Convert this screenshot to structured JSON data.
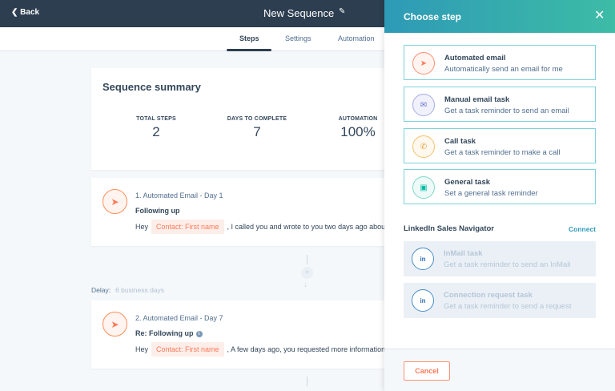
{
  "header": {
    "back_label": "Back",
    "title": "New Sequence",
    "edit_icon": "pencil-icon"
  },
  "tabs": [
    {
      "label": "Steps",
      "active": true
    },
    {
      "label": "Settings"
    },
    {
      "label": "Automation"
    }
  ],
  "summary": {
    "title": "Sequence summary",
    "stats": [
      {
        "label": "TOTAL STEPS",
        "value": "2"
      },
      {
        "label": "DAYS TO COMPLETE",
        "value": "7"
      },
      {
        "label": "AUTOMATION",
        "value": "100%"
      }
    ]
  },
  "steps": [
    {
      "heading": "1. Automated Email - Day 1",
      "subject": "Following up",
      "greeting": "Hey",
      "token": "Contact: First name",
      "body": ", I called you and wrote to you two days ago about some"
    },
    {
      "heading": "2. Automated Email - Day 7",
      "subject": "Re: Following up",
      "greeting": "Hey",
      "token": "Contact: First name",
      "body": ", A few days ago, you requested more information about"
    }
  ],
  "delay": {
    "label": "Delay:",
    "value": "6 business days"
  },
  "panel": {
    "title": "Choose step",
    "options": [
      {
        "title": "Automated email",
        "desc": "Automatically send an email for me",
        "icon": "paper-plane-icon",
        "color": "#ff7a59"
      },
      {
        "title": "Manual email task",
        "desc": "Get a task reminder to send an email",
        "icon": "envelope-icon",
        "color": "#6a78d1"
      },
      {
        "title": "Call task",
        "desc": "Get a task reminder to make a call",
        "icon": "phone-icon",
        "color": "#f5c26b"
      },
      {
        "title": "General task",
        "desc": "Set a general task reminder",
        "icon": "task-icon",
        "color": "#00bda5"
      }
    ],
    "linkedin": {
      "label": "LinkedIn Sales Navigator",
      "connect": "Connect",
      "options": [
        {
          "title": "InMail task",
          "desc": "Get a task reminder to send an InMail"
        },
        {
          "title": "Connection request task",
          "desc": "Get a task reminder to send a request"
        }
      ]
    },
    "cancel": "Cancel"
  },
  "colors": {
    "header": "#2d3e50",
    "accent": "#ff7a59",
    "teal": "#2e9ab6"
  }
}
